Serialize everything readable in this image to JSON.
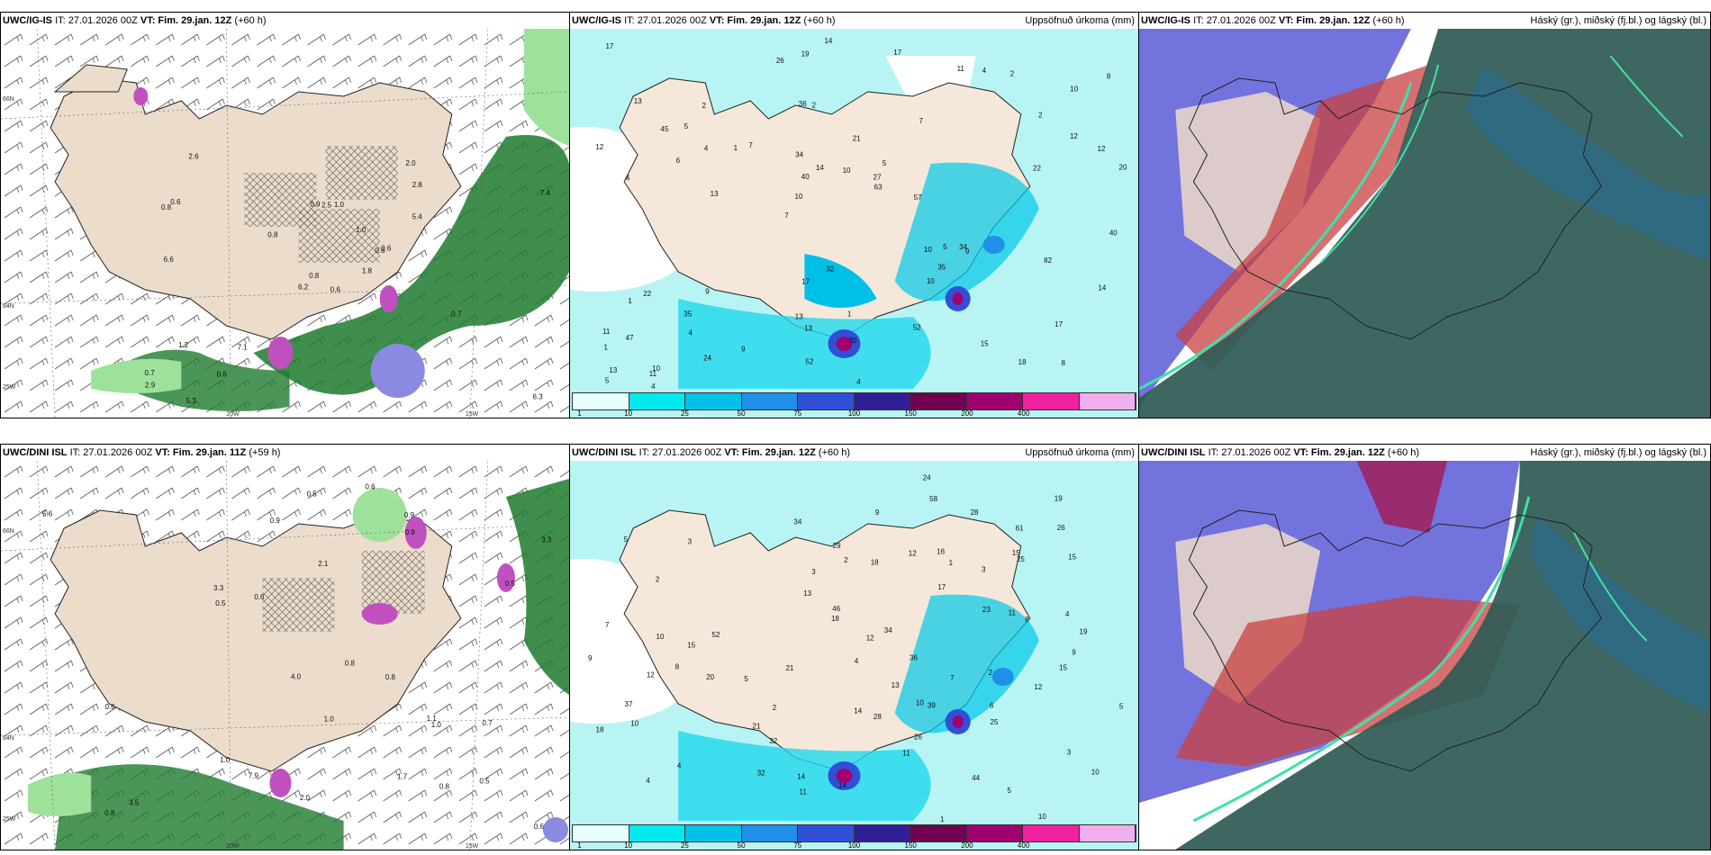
{
  "panels": [
    {
      "model": "UWC/IG-IS",
      "it": "IT: 27.01.2026 00Z",
      "vt_label": "VT:",
      "vt": "Fim. 29.jan. 12Z",
      "lead": "(+60 h)",
      "right": ""
    },
    {
      "model": "UWC/IG-IS",
      "it": "IT: 27.01.2026 00Z",
      "vt_label": "VT:",
      "vt": "Fim. 29.jan. 12Z",
      "lead": "(+60 h)",
      "right": "Uppsöfnuð úrkoma (mm)"
    },
    {
      "model": "UWC/IG-IS",
      "it": "IT: 27.01.2026 00Z",
      "vt_label": "VT:",
      "vt": "Fim. 29.jan. 12Z",
      "lead": "(+60 h)",
      "right": "Háský (gr.), miðský (fj.bl.) og lágský (bl.)"
    },
    {
      "model": "UWC/DINI ISL",
      "it": "IT: 27.01.2026 00Z",
      "vt_label": "VT:",
      "vt": "Fim. 29.jan. 11Z",
      "lead": "(+59 h)",
      "right": ""
    },
    {
      "model": "UWC/DINI ISL",
      "it": "IT: 27.01.2026 00Z",
      "vt_label": "VT:",
      "vt": "Fim. 29.jan. 12Z",
      "lead": "(+60 h)",
      "right": "Uppsöfnuð úrkoma (mm)"
    },
    {
      "model": "UWC/DINI ISL",
      "it": "IT: 27.01.2026 00Z",
      "vt_label": "VT:",
      "vt": "Fim. 29.jan. 12Z",
      "lead": "(+60 h)",
      "right": "Háský (gr.), miðský (fj.bl.) og lágský (bl.)"
    }
  ],
  "grid_labels": {
    "lat66": "66N",
    "lat64": "64N",
    "lon25": "25W",
    "lon20": "20W",
    "lon15": "15W"
  },
  "legend": {
    "ticks": [
      "1",
      "10",
      "25",
      "50",
      "75",
      "100",
      "150",
      "200",
      "400"
    ],
    "colors": [
      "#e8ffff",
      "#00e8f0",
      "#00c0e8",
      "#2090e8",
      "#3050d8",
      "#302098",
      "#700050",
      "#a00070",
      "#f020a0",
      "#f0b0f0"
    ]
  },
  "precip_labels_top": [
    "8",
    "4",
    "10",
    "7",
    "7",
    "10",
    "36",
    "21",
    "22",
    "7",
    "1",
    "4",
    "2",
    "5",
    "9",
    "13",
    "19",
    "20",
    "10",
    "12",
    "10",
    "13",
    "40",
    "2",
    "11",
    "9",
    "18",
    "17",
    "34",
    "4",
    "1",
    "6",
    "10",
    "24",
    "12",
    "27",
    "13",
    "13",
    "63",
    "1",
    "2",
    "8",
    "35",
    "52",
    "35",
    "4",
    "5",
    "1",
    "2",
    "14",
    "13",
    "12",
    "5",
    "4",
    "11",
    "17",
    "26",
    "14",
    "14",
    "17",
    "9",
    "5",
    "4",
    "11",
    "17",
    "45",
    "40",
    "34",
    "20",
    "10",
    "47",
    "57",
    "82",
    "52",
    "22",
    "32",
    "15"
  ],
  "precip_labels_bottom": [
    "10",
    "8",
    "10",
    "5",
    "3",
    "2",
    "4",
    "5",
    "3",
    "2",
    "1",
    "5",
    "32",
    "34",
    "36",
    "10",
    "2",
    "12",
    "7",
    "4",
    "19",
    "18",
    "11",
    "5",
    "9",
    "10",
    "20",
    "4",
    "18",
    "26",
    "39",
    "12",
    "21",
    "16",
    "3",
    "12",
    "15",
    "44",
    "61",
    "1",
    "2",
    "28",
    "32",
    "24",
    "21",
    "15",
    "15",
    "58",
    "12",
    "14",
    "7",
    "4",
    "6",
    "8",
    "13",
    "9",
    "11",
    "46",
    "13",
    "23",
    "14",
    "15",
    "3",
    "9",
    "18",
    "37",
    "52",
    "34",
    "28",
    "25",
    "25",
    "14",
    "11",
    "10",
    "17",
    "19",
    "29",
    "26"
  ],
  "wind_labels_top": [
    "0.6",
    "0.8",
    "0.8",
    "0.7",
    "0.6",
    "7.1",
    "2.0",
    "1.0",
    "2.8",
    "1.8",
    "2.6",
    "6.3",
    "6.6",
    "7.4",
    "6.2",
    "5.4",
    "5.3",
    "0.9",
    "1.0",
    "1.2",
    "0.8",
    "2.9",
    "0.6",
    "2.5",
    "0.6",
    "0.7",
    "0.6"
  ],
  "wind_labels_bottom": [
    "0.8",
    "0.7",
    "0.8",
    "1.0",
    "0.9",
    "0.6",
    "0.5",
    "0.9",
    "0.8",
    "1.0",
    "0.6",
    "0.5",
    "7.9",
    "0.5",
    "1.7",
    "3.3",
    "1.1",
    "0.6",
    "4.0",
    "3.3",
    "5.6",
    "3.5",
    "2.0",
    "0.8",
    "1.0",
    "0.9",
    "0.6",
    "2.1",
    "0.5"
  ]
}
